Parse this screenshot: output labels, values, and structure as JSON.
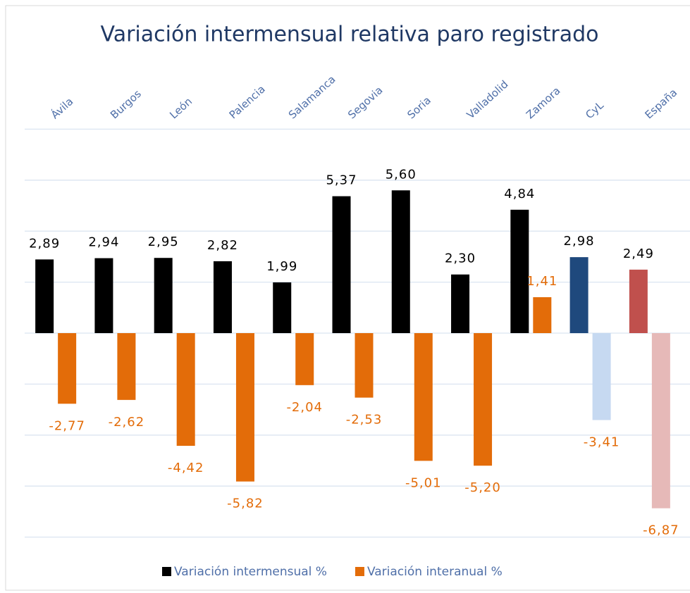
{
  "chart_data": {
    "type": "bar",
    "title": "Variación intermensual relativa paro registrado",
    "categories": [
      "Ávila",
      "Burgos",
      "León",
      "Palencia",
      "Salamanca",
      "Segovia",
      "Soria",
      "Valladolid",
      "Zamora",
      "CyL",
      "España"
    ],
    "series": [
      {
        "name": "Variación intermensual %",
        "color": "#000000",
        "colors": [
          "#000000",
          "#000000",
          "#000000",
          "#000000",
          "#000000",
          "#000000",
          "#000000",
          "#000000",
          "#000000",
          "#1f497d",
          "#c0504d"
        ],
        "values": [
          2.89,
          2.94,
          2.95,
          2.82,
          1.99,
          5.37,
          5.6,
          2.3,
          4.84,
          2.98,
          2.49
        ],
        "value_labels": [
          "2,89",
          "2,94",
          "2,95",
          "2,82",
          "1,99",
          "5,37",
          "5,60",
          "2,30",
          "4,84",
          "2,98",
          "2,49"
        ]
      },
      {
        "name": "Variación interanual %",
        "color": "#e36c09",
        "colors": [
          "#e36c09",
          "#e36c09",
          "#e36c09",
          "#e36c09",
          "#e36c09",
          "#e36c09",
          "#e36c09",
          "#e36c09",
          "#e36c09",
          "#c6d9f1",
          "#e6b9b8"
        ],
        "values": [
          -2.77,
          -2.62,
          -4.42,
          -5.82,
          -2.04,
          -2.53,
          -5.01,
          -5.2,
          1.41,
          -3.41,
          -6.87
        ],
        "value_labels": [
          "-2,77",
          "-2,62",
          "-4,42",
          "-5,82",
          "-2,04",
          "-2,53",
          "-5,01",
          "-5,20",
          "1,41",
          "-3,41",
          "-6,87"
        ]
      }
    ],
    "ylim": [
      -8,
      8
    ],
    "yticks": [
      -8,
      -6,
      -4,
      -2,
      0,
      2,
      4,
      6,
      8
    ],
    "grid": true
  }
}
